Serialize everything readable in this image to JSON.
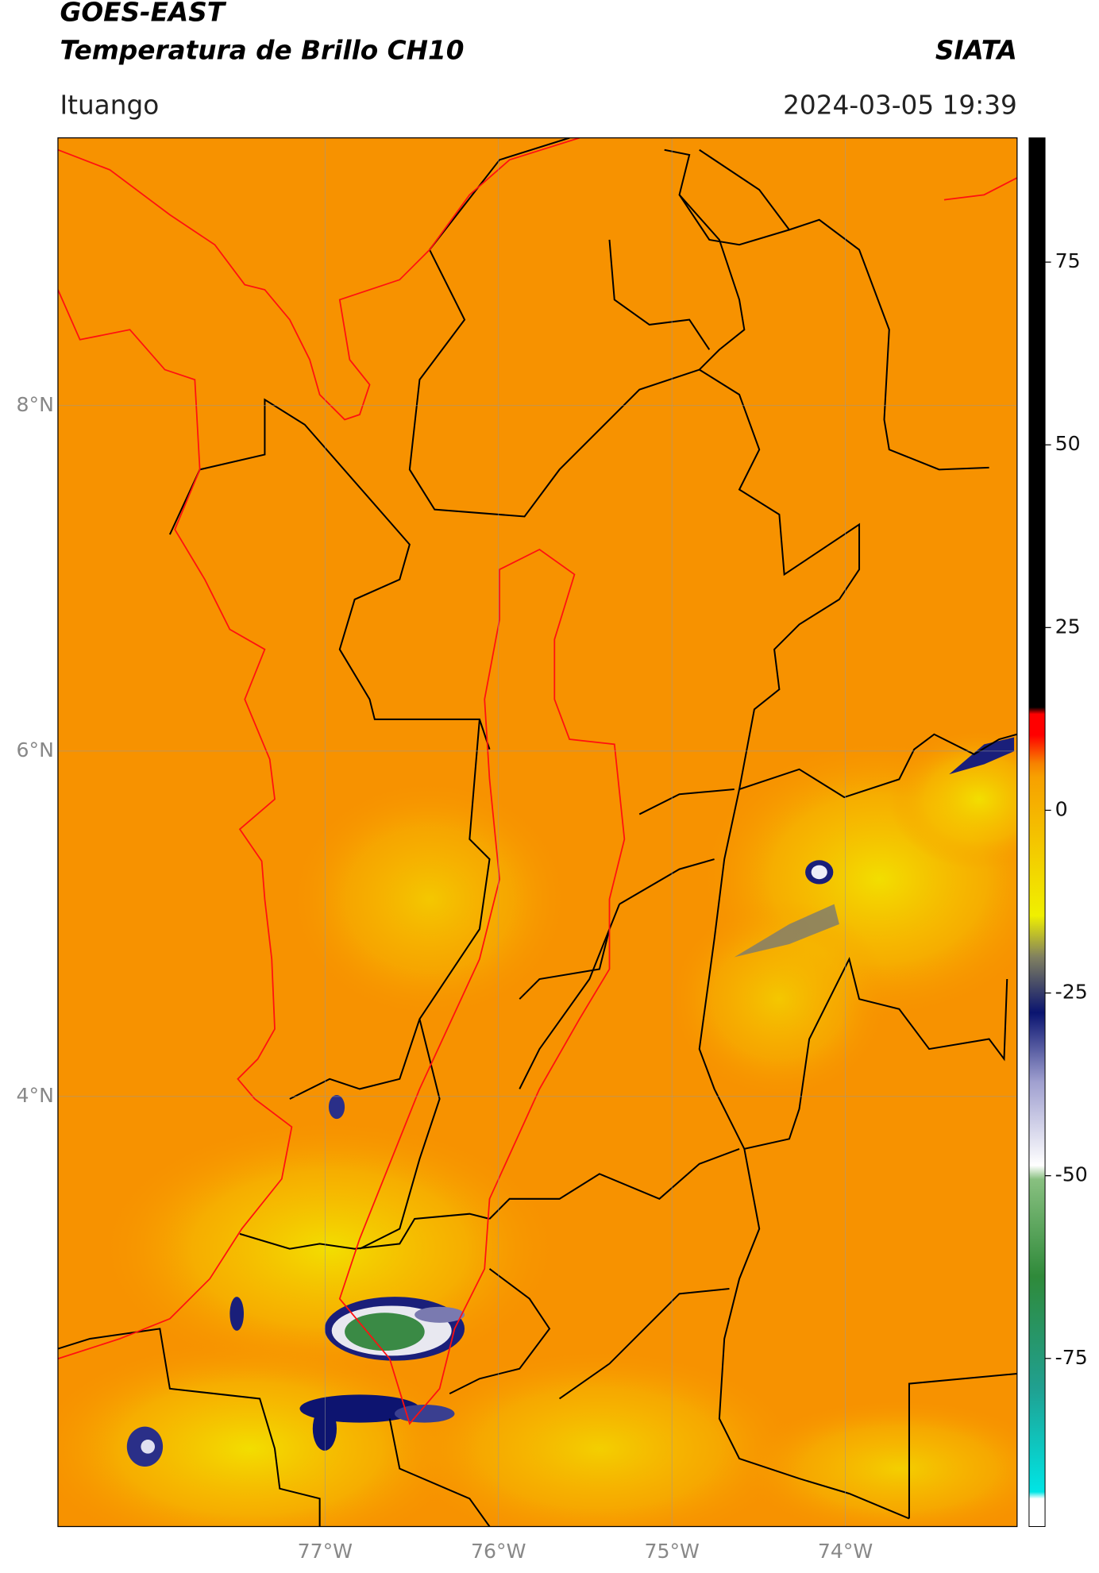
{
  "header": {
    "title": "GOES-EAST",
    "subtitle": "Temperatura de Brillo CH10",
    "brand": "SIATA",
    "location": "Ituango",
    "datetime": "2024-03-05 19:39"
  },
  "chart_data": {
    "type": "map",
    "xlim": [
      -78.54,
      -73.01
    ],
    "ylim": [
      1.51,
      9.55
    ],
    "xticks": [
      {
        "value": -77,
        "label": "77°W"
      },
      {
        "value": -76,
        "label": "76°W"
      },
      {
        "value": -75,
        "label": "75°W"
      },
      {
        "value": -74,
        "label": "74°W"
      }
    ],
    "yticks": [
      {
        "value": 8,
        "label": "8°N"
      },
      {
        "value": 6,
        "label": "6°N"
      },
      {
        "value": 4,
        "label": "4°N"
      }
    ],
    "grid": true,
    "colorbar": {
      "lim": [
        -98,
        92
      ],
      "ticks": [
        -75,
        -50,
        -25,
        0,
        25,
        50,
        75
      ]
    }
  }
}
